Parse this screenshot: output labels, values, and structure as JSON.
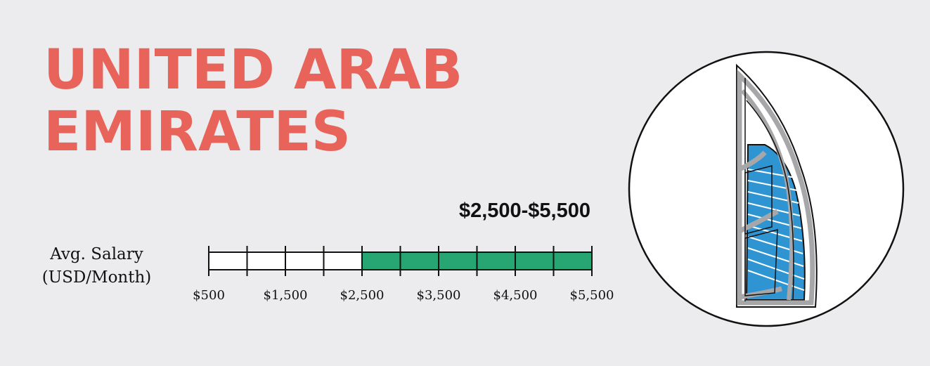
{
  "title": {
    "line1": "UNITED ARAB",
    "line2": "EMIRATES"
  },
  "chart_data": {
    "type": "bar",
    "orientation": "horizontal",
    "range_label": "$2,500-$5,500",
    "ylabel_line1": "Avg. Salary",
    "ylabel_line2": "(USD/Month)",
    "xlim": [
      500,
      5500
    ],
    "tick_values": [
      500,
      1500,
      2500,
      3500,
      4500,
      5500
    ],
    "tick_labels": [
      "$500",
      "$1,500",
      "$2,500",
      "$3,500",
      "$4,500",
      "$5,500"
    ],
    "minor_ticks": [
      1000,
      2000,
      3000,
      4000,
      5000
    ],
    "values": [
      2500,
      5500
    ],
    "fill_color": "#27a673",
    "empty_color": "#ffffff"
  },
  "colors": {
    "title": "#e8645a",
    "background": "#ececee",
    "tower_frame": "#a7a7a9",
    "tower_glass": "#2f95d2"
  },
  "illustration": {
    "icon": "burj-al-arab-icon"
  }
}
